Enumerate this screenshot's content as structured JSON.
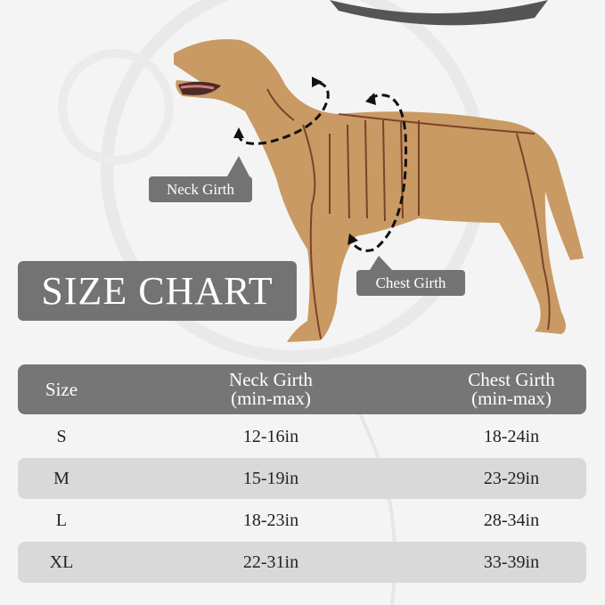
{
  "colors": {
    "background": "#f4f4f4",
    "label_box": "#737373",
    "table_header": "#767676",
    "row_band": "#d9d9d9",
    "dog": "#c99a63",
    "bones": "#6b2c1f"
  },
  "icons": [
    "dashed-arrow-neck-icon",
    "dashed-arrow-chest-icon"
  ],
  "title": "SIZE CHART",
  "callouts": {
    "neck": "Neck Girth",
    "chest": "Chest Girth"
  },
  "table": {
    "headers": [
      {
        "line1": "Size",
        "line2": ""
      },
      {
        "line1": "Neck Girth",
        "line2": "(min-max)"
      },
      {
        "line1": "Chest Girth",
        "line2": "(min-max)"
      }
    ],
    "rows": [
      {
        "size": "S",
        "neck": "12-16in",
        "chest": "18-24in"
      },
      {
        "size": "M",
        "neck": "15-19in",
        "chest": "23-29in"
      },
      {
        "size": "L",
        "neck": "18-23in",
        "chest": "28-34in"
      },
      {
        "size": "XL",
        "neck": "22-31in",
        "chest": "33-39in"
      }
    ]
  }
}
